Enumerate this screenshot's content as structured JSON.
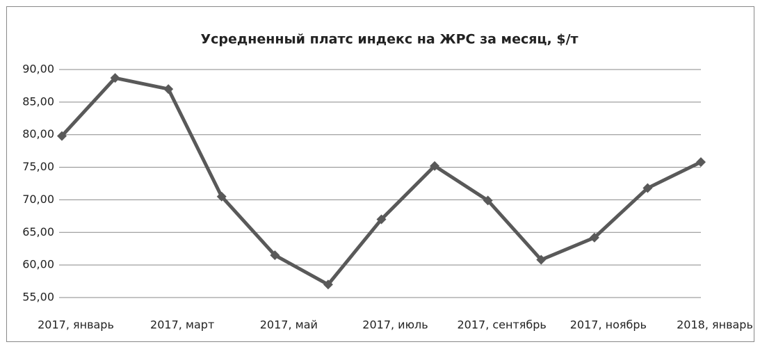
{
  "chart_data": {
    "type": "line",
    "title": "Усредненный платс индекс на ЖРС за месяц, $/т",
    "categories": [
      "2017, январь",
      null,
      "2017, март",
      null,
      "2017, май",
      null,
      "2017, июль",
      null,
      "2017, сентябрь",
      null,
      "2017, ноябрь",
      null,
      "2018, январь"
    ],
    "series": [
      {
        "color": "#595959",
        "values": [
          79.8,
          88.7,
          87.0,
          70.5,
          61.5,
          57.0,
          67.0,
          75.2,
          69.9,
          60.8,
          64.2,
          71.8,
          75.8
        ]
      }
    ],
    "ylim": [
      55,
      90
    ],
    "yticks": [
      {
        "value": 55,
        "label": "55,00"
      },
      {
        "value": 60,
        "label": "60,00"
      },
      {
        "value": 65,
        "label": "65,00"
      },
      {
        "value": 70,
        "label": "70,00"
      },
      {
        "value": 75,
        "label": "75,00"
      },
      {
        "value": 80,
        "label": "80,00"
      },
      {
        "value": 85,
        "label": "85,00"
      },
      {
        "value": 90,
        "label": "90,00"
      }
    ],
    "grid": true
  }
}
